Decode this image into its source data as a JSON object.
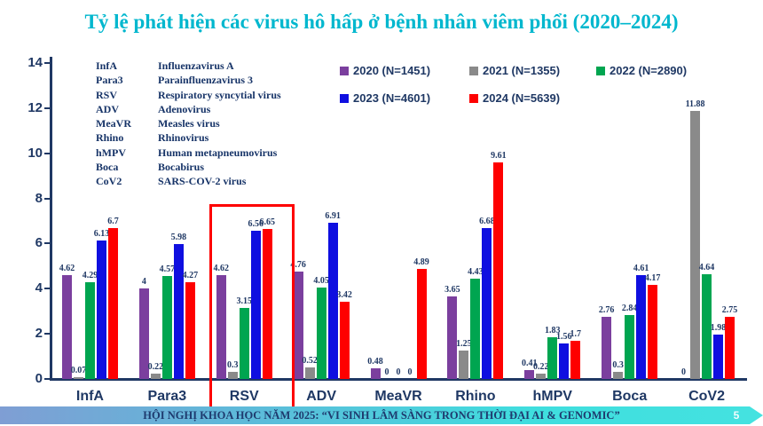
{
  "title": "Tỷ lệ phát hiện các virus hô hấp ở bệnh nhân viêm phổi (2020–2024)",
  "abbreviations": [
    {
      "abbr": "InfA",
      "full": "Influenzavirus A"
    },
    {
      "abbr": "Para3",
      "full": "Parainfluenzavirus 3"
    },
    {
      "abbr": "RSV",
      "full": "Respiratory syncytial virus"
    },
    {
      "abbr": "ADV",
      "full": "Adenovirus"
    },
    {
      "abbr": "MeaVR",
      "full": "Measles virus"
    },
    {
      "abbr": "Rhino",
      "full": "Rhinovirus"
    },
    {
      "abbr": "hMPV",
      "full": "Human metapneumovirus"
    },
    {
      "abbr": "Boca",
      "full": "Bocabirus"
    },
    {
      "abbr": "CoV2",
      "full": "SARS-COV-2 virus"
    }
  ],
  "chart_data": {
    "type": "bar",
    "title": "Tỷ lệ phát hiện các virus hô hấp ở bệnh nhân viêm phổi (2020–2024)",
    "categories": [
      "InfA",
      "Para3",
      "RSV",
      "ADV",
      "MeaVR",
      "Rhino",
      "hMPV",
      "Boca",
      "CoV2"
    ],
    "series": [
      {
        "name": "2020 (N=1451)",
        "color": "#7b3f9e",
        "values": [
          4.62,
          4,
          4.62,
          4.76,
          0.48,
          3.65,
          0.41,
          2.76,
          0
        ]
      },
      {
        "name": "2021 (N=1355)",
        "color": "#8a8a8a",
        "values": [
          0.07,
          0.22,
          0.3,
          0.52,
          0,
          1.25,
          0.22,
          0.3,
          11.88
        ]
      },
      {
        "name": "2022 (N=2890)",
        "color": "#00a550",
        "values": [
          4.29,
          4.57,
          3.15,
          4.05,
          0,
          4.43,
          1.83,
          2.84,
          4.64
        ]
      },
      {
        "name": "2023 (N=4601)",
        "color": "#0f0fe0",
        "values": [
          6.13,
          5.98,
          6.56,
          6.91,
          0,
          6.68,
          1.56,
          4.61,
          1.98
        ]
      },
      {
        "name": "2024 (N=5639)",
        "color": "#fe0000",
        "values": [
          6.7,
          4.27,
          6.65,
          3.42,
          4.89,
          9.61,
          1.7,
          4.17,
          2.75
        ]
      }
    ],
    "xlabel": "",
    "ylabel": "",
    "ylim": [
      0,
      14
    ],
    "yticks": [
      0,
      2,
      4,
      6,
      8,
      10,
      12,
      14
    ],
    "grid": false,
    "legend_position": "top",
    "highlighted_category": "RSV"
  },
  "footer": {
    "text": "HỘI NGHỊ KHOA HỌC NĂM 2025: “VI SINH LÂM SÀNG TRONG THỜI ĐẠI AI & GENOMIC”",
    "page": "5"
  }
}
